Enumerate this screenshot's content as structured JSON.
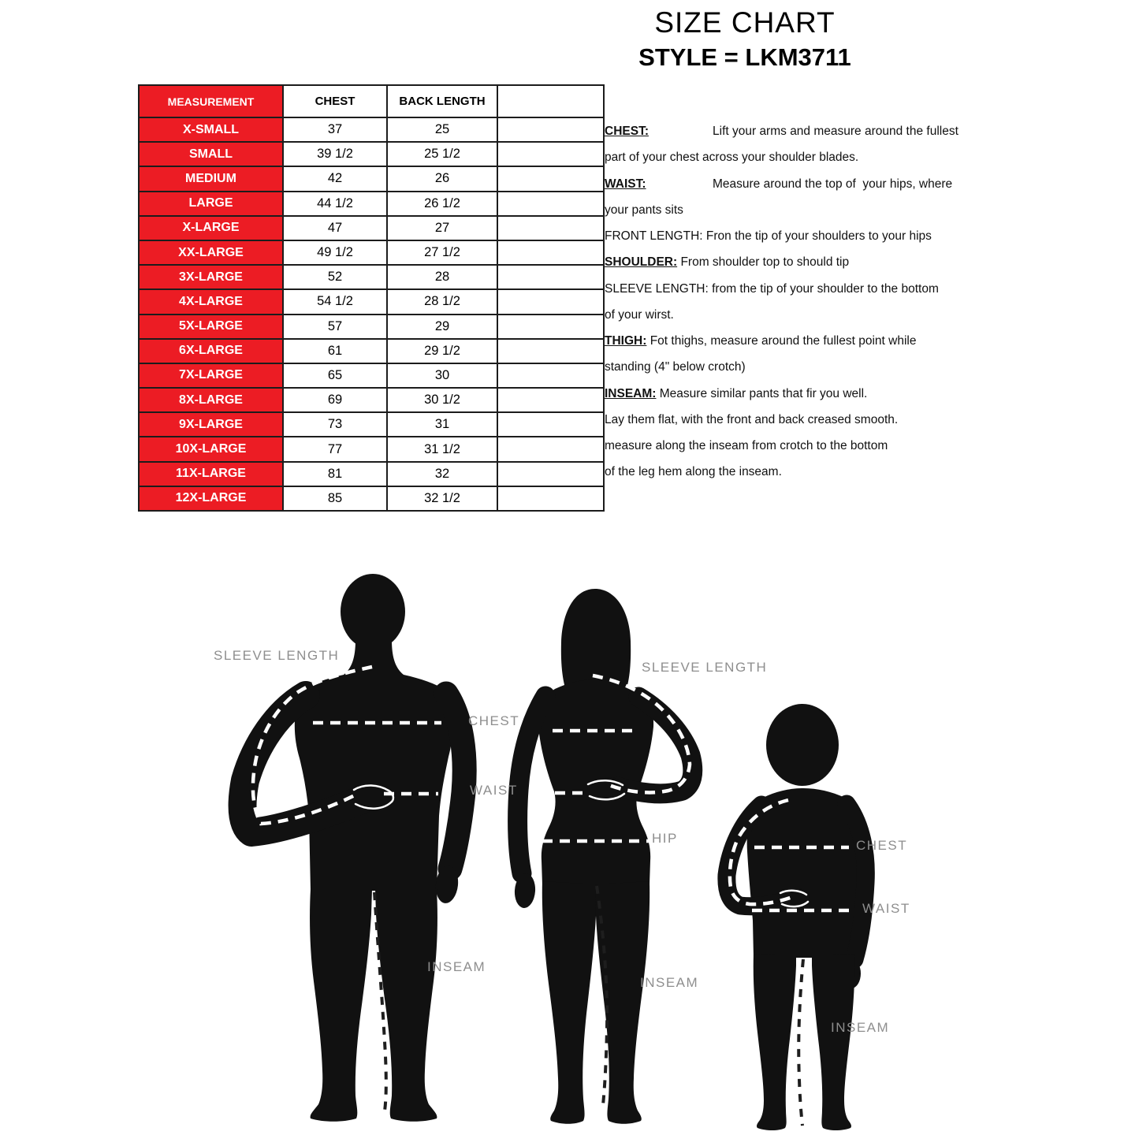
{
  "title": "SIZE CHART",
  "subtitle": "STYLE = LKM3711",
  "size_table": {
    "headers": [
      "MEASUREMENT",
      "CHEST",
      "BACK LENGTH",
      ""
    ],
    "rows": [
      {
        "size": "X-SMALL",
        "chest": "37",
        "back_length": "25"
      },
      {
        "size": "SMALL",
        "chest": "39 1/2",
        "back_length": "25 1/2"
      },
      {
        "size": "MEDIUM",
        "chest": "42",
        "back_length": "26"
      },
      {
        "size": "LARGE",
        "chest": "44 1/2",
        "back_length": "26 1/2"
      },
      {
        "size": "X-LARGE",
        "chest": "47",
        "back_length": "27"
      },
      {
        "size": "XX-LARGE",
        "chest": "49 1/2",
        "back_length": "27 1/2"
      },
      {
        "size": "3X-LARGE",
        "chest": "52",
        "back_length": "28"
      },
      {
        "size": "4X-LARGE",
        "chest": "54 1/2",
        "back_length": "28 1/2"
      },
      {
        "size": "5X-LARGE",
        "chest": "57",
        "back_length": "29"
      },
      {
        "size": "6X-LARGE",
        "chest": "61",
        "back_length": "29 1/2"
      },
      {
        "size": "7X-LARGE",
        "chest": "65",
        "back_length": "30"
      },
      {
        "size": "8X-LARGE",
        "chest": "69",
        "back_length": "30 1/2"
      },
      {
        "size": "9X-LARGE",
        "chest": "73",
        "back_length": "31"
      },
      {
        "size": "10X-LARGE",
        "chest": "77",
        "back_length": "31 1/2"
      },
      {
        "size": "11X-LARGE",
        "chest": "81",
        "back_length": "32"
      },
      {
        "size": "12X-LARGE",
        "chest": "85",
        "back_length": "32 1/2"
      }
    ]
  },
  "instructions": {
    "lines": [
      {
        "term": "CHEST:",
        "tab": true,
        "text": "Lift your arms and measure around the fullest"
      },
      {
        "text": "part of your chest across your shoulder blades."
      },
      {
        "term": "WAIST:",
        "tab": true,
        "text": "Measure around the top of  your hips, where"
      },
      {
        "text": "your pants sits"
      },
      {
        "text": "FRONT LENGTH: Fron the tip of your shoulders to your hips"
      },
      {
        "term": "SHOULDER:",
        "tab": false,
        "text": "From shoulder top to should tip"
      },
      {
        "text": "SLEEVE LENGTH: from the tip of your shoulder to the bottom"
      },
      {
        "text": "of your wirst."
      },
      {
        "term": "THIGH:",
        "tab": false,
        "text": "Fot thighs, measure around the fullest point while"
      },
      {
        "text": "standing (4\" below crotch)"
      },
      {
        "term": "INSEAM:",
        "tab": false,
        "text": "Measure similar pants that fir you well."
      },
      {
        "text": "Lay them flat, with the front and back creased smooth."
      },
      {
        "text": "measure along the inseam from crotch to the bottom"
      },
      {
        "text": "of the leg hem along the inseam."
      }
    ]
  },
  "figure_labels": {
    "man_sleeve": "SLEEVE LENGTH",
    "man_chest": "CHEST",
    "man_waist": "WAIST",
    "man_inseam": "INSEAM",
    "woman_sleeve": "SLEEVE LENGTH",
    "woman_hip": "HIP",
    "woman_inseam": "INSEAM",
    "child_chest": "CHEST",
    "child_waist": "WAIST",
    "child_inseam": "INSEAM"
  },
  "colors": {
    "table_red": "#EC1C24",
    "label_gray": "#8E8E8E",
    "silhouette_black": "#111111"
  }
}
